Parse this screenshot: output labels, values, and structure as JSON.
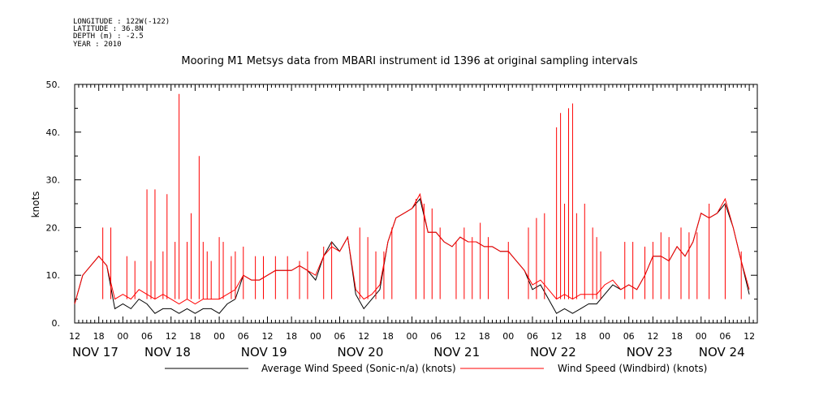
{
  "header": {
    "longitude": "LONGITUDE : 122W(-122)",
    "latitude": "LATITUDE : 36.8N",
    "depth": "DEPTH (m) : -2.5",
    "year": "YEAR : 2010"
  },
  "chart_data": {
    "type": "line",
    "title": "Mooring M1 Metsys data from MBARI instrument id 1396 at original sampling intervals",
    "xlabel": "",
    "ylabel": "knots",
    "ylim": [
      0,
      50
    ],
    "xlim_hours": [
      0,
      170
    ],
    "y_ticks": [
      "0.",
      "10.",
      "20.",
      "30.",
      "40.",
      "50."
    ],
    "x_hour_tick_labels": [
      "12",
      "18",
      "00",
      "06",
      "12",
      "18",
      "00",
      "06",
      "12",
      "18",
      "00",
      "06",
      "12",
      "18",
      "00",
      "06",
      "12",
      "18",
      "00",
      "06",
      "12",
      "18",
      "00",
      "06",
      "12",
      "18",
      "00",
      "06",
      "12"
    ],
    "x_day_labels": [
      "NOV 17",
      "NOV 18",
      "NOV 19",
      "NOV 20",
      "NOV 21",
      "NOV 22",
      "NOV 23",
      "NOV 24"
    ],
    "x_day_label_hours": [
      0,
      18,
      42,
      66,
      90,
      114,
      138,
      156
    ],
    "series": [
      {
        "name": "Average Wind Speed (Sonic-n/a) (knots)",
        "color": "#000000",
        "hours": [
          0,
          2,
          4,
          6,
          8,
          10,
          12,
          14,
          16,
          18,
          20,
          22,
          24,
          26,
          28,
          30,
          32,
          34,
          36,
          38,
          40,
          42,
          44,
          46,
          48,
          50,
          52,
          54,
          56,
          58,
          60,
          62,
          64,
          66,
          68,
          70,
          72,
          74,
          76,
          78,
          80,
          82,
          84,
          86,
          88,
          90,
          92,
          94,
          96,
          98,
          100,
          102,
          104,
          106,
          108,
          110,
          112,
          114,
          116,
          118,
          120,
          122,
          124,
          126,
          128,
          130,
          132,
          134,
          136,
          138,
          140,
          142,
          144,
          146,
          148,
          150,
          152,
          154,
          156,
          158,
          160,
          162,
          164,
          166,
          168
        ],
        "values": [
          4,
          10,
          12,
          14,
          12,
          3,
          4,
          3,
          5,
          4,
          2,
          3,
          3,
          2,
          3,
          2,
          3,
          3,
          2,
          4,
          5,
          10,
          9,
          9,
          10,
          11,
          11,
          11,
          12,
          11,
          9,
          14,
          17,
          15,
          18,
          6,
          3,
          5,
          7,
          17,
          22,
          23,
          24,
          26,
          19,
          19,
          17,
          16,
          18,
          17,
          17,
          16,
          16,
          15,
          15,
          13,
          11,
          7,
          8,
          5,
          2,
          3,
          2,
          3,
          4,
          4,
          6,
          8,
          7,
          8,
          7,
          10,
          14,
          14,
          13,
          16,
          14,
          17,
          23,
          22,
          23,
          25,
          20,
          13,
          6
        ],
        "spike_hours": [],
        "spike_values": []
      },
      {
        "name": "Wind Speed (Windbird) (knots)",
        "color": "#ff0000",
        "hours": [
          0,
          2,
          4,
          6,
          8,
          10,
          12,
          14,
          16,
          18,
          20,
          22,
          24,
          26,
          28,
          30,
          32,
          34,
          36,
          38,
          40,
          42,
          44,
          46,
          48,
          50,
          52,
          54,
          56,
          58,
          60,
          62,
          64,
          66,
          68,
          70,
          72,
          74,
          76,
          78,
          80,
          82,
          84,
          86,
          88,
          90,
          92,
          94,
          96,
          98,
          100,
          102,
          104,
          106,
          108,
          110,
          112,
          114,
          116,
          118,
          120,
          122,
          124,
          126,
          128,
          130,
          132,
          134,
          136,
          138,
          140,
          142,
          144,
          146,
          148,
          150,
          152,
          154,
          156,
          158,
          160,
          162,
          164,
          166,
          168
        ],
        "values": [
          4,
          10,
          12,
          14,
          12,
          5,
          6,
          5,
          7,
          6,
          5,
          6,
          5,
          4,
          5,
          4,
          5,
          5,
          5,
          6,
          7,
          10,
          9,
          9,
          10,
          11,
          11,
          11,
          12,
          11,
          10,
          14,
          16,
          15,
          18,
          7,
          5,
          6,
          8,
          17,
          22,
          23,
          24,
          27,
          19,
          19,
          17,
          16,
          18,
          17,
          17,
          16,
          16,
          15,
          15,
          13,
          11,
          8,
          9,
          7,
          5,
          6,
          5,
          6,
          6,
          6,
          8,
          9,
          7,
          8,
          7,
          10,
          14,
          14,
          13,
          16,
          14,
          17,
          23,
          22,
          23,
          26,
          20,
          13,
          7
        ],
        "spike_hours": [
          7,
          9,
          13,
          15,
          18,
          19,
          20,
          22,
          23,
          25,
          26,
          28,
          29,
          31,
          32,
          33,
          34,
          36,
          37,
          39,
          40,
          42,
          45,
          47,
          50,
          53,
          56,
          58,
          62,
          64,
          71,
          73,
          75,
          77,
          79,
          85,
          87,
          89,
          91,
          95,
          97,
          99,
          101,
          103,
          108,
          113,
          115,
          117,
          120,
          121,
          122,
          123,
          124,
          125,
          127,
          129,
          130,
          131,
          137,
          139,
          142,
          144,
          146,
          148,
          151,
          153,
          155,
          158,
          162,
          166
        ],
        "spike_values": [
          20,
          20,
          14,
          13,
          28,
          13,
          28,
          15,
          27,
          17,
          48,
          17,
          23,
          35,
          17,
          15,
          13,
          18,
          17,
          14,
          15,
          16,
          14,
          14,
          14,
          14,
          13,
          15,
          16,
          17,
          20,
          18,
          15,
          15,
          20,
          26,
          25,
          24,
          20,
          17,
          20,
          18,
          21,
          18,
          17,
          20,
          22,
          23,
          41,
          44,
          25,
          45,
          46,
          23,
          25,
          20,
          18,
          15,
          17,
          17,
          16,
          17,
          19,
          18,
          20,
          19,
          19,
          25,
          25,
          15
        ]
      }
    ]
  }
}
